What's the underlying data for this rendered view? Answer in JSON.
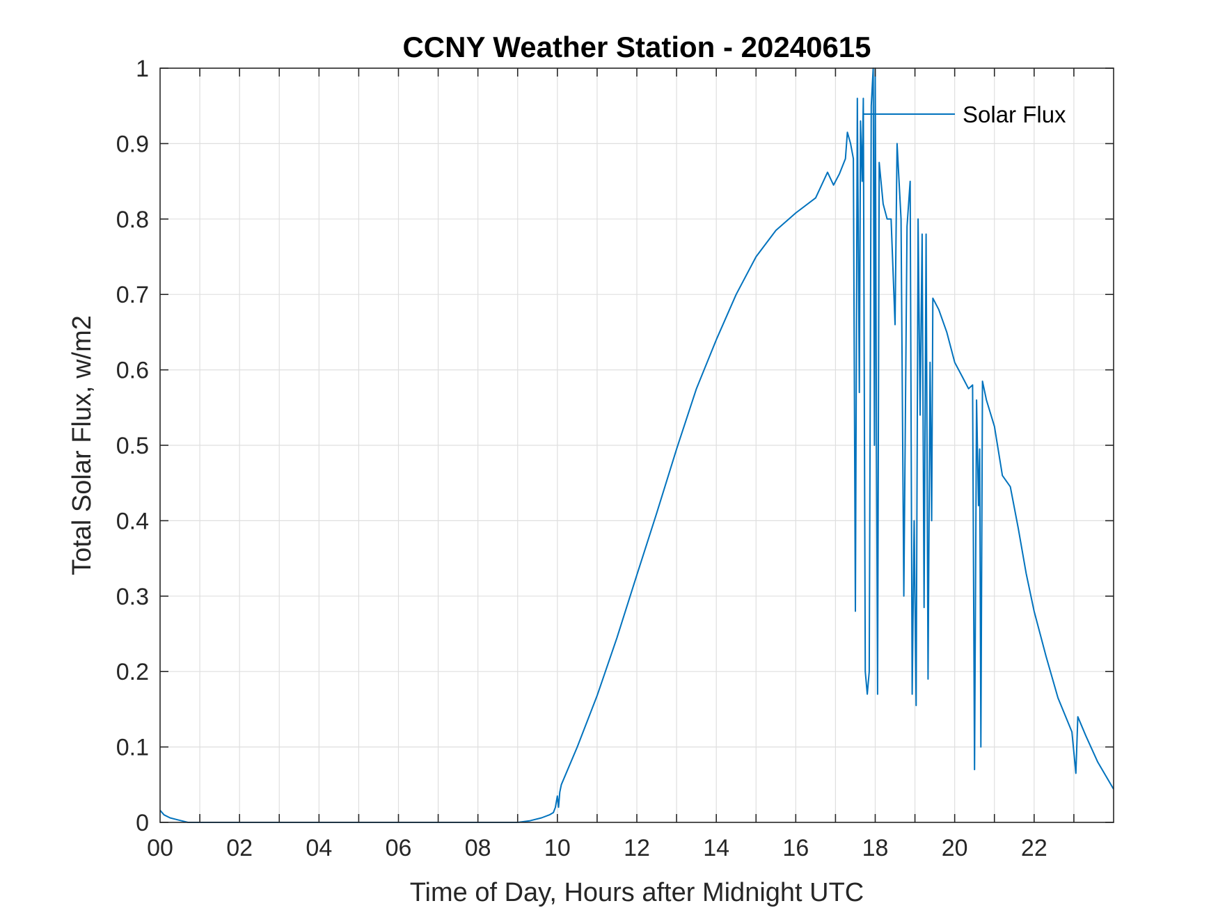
{
  "chart_data": {
    "type": "line",
    "title": "CCNY Weather Station - 20240615",
    "xlabel": "Time of Day, Hours after Midnight UTC",
    "ylabel": "Total Solar Flux, w/m2",
    "xlim": [
      0,
      24
    ],
    "ylim": [
      0,
      1
    ],
    "x_ticks": [
      0,
      2,
      4,
      6,
      8,
      10,
      12,
      14,
      16,
      18,
      20,
      22
    ],
    "x_tick_labels": [
      "00",
      "02",
      "04",
      "06",
      "08",
      "10",
      "12",
      "14",
      "16",
      "18",
      "20",
      "22"
    ],
    "y_ticks": [
      0,
      0.1,
      0.2,
      0.3,
      0.4,
      0.5,
      0.6,
      0.7,
      0.8,
      0.9,
      1
    ],
    "y_tick_labels": [
      "0",
      "0.1",
      "0.2",
      "0.3",
      "0.4",
      "0.5",
      "0.6",
      "0.7",
      "0.8",
      "0.9",
      "1"
    ],
    "grid": true,
    "legend": {
      "placement": "top-right",
      "entries": [
        "Solar Flux"
      ]
    },
    "series": [
      {
        "name": "Solar Flux",
        "color": "#0072BD",
        "points": [
          [
            0,
            0.016
          ],
          [
            0.1,
            0.01
          ],
          [
            0.25,
            0.006
          ],
          [
            0.4,
            0.004
          ],
          [
            0.55,
            0.002
          ],
          [
            0.7,
            0.0
          ],
          [
            1,
            0.0
          ],
          [
            2,
            0.0
          ],
          [
            3,
            0.0
          ],
          [
            4,
            0.0
          ],
          [
            5,
            0.0
          ],
          [
            6,
            0.0
          ],
          [
            7,
            0.0
          ],
          [
            8,
            0.0
          ],
          [
            9,
            0.0
          ],
          [
            9.3,
            0.002
          ],
          [
            9.6,
            0.006
          ],
          [
            9.8,
            0.01
          ],
          [
            9.9,
            0.013
          ],
          [
            9.95,
            0.02
          ],
          [
            10.0,
            0.035
          ],
          [
            10.03,
            0.02
          ],
          [
            10.06,
            0.04
          ],
          [
            10.1,
            0.05
          ],
          [
            10.5,
            0.1
          ],
          [
            11.0,
            0.168
          ],
          [
            11.5,
            0.245
          ],
          [
            12.0,
            0.328
          ],
          [
            12.5,
            0.41
          ],
          [
            13.0,
            0.495
          ],
          [
            13.5,
            0.575
          ],
          [
            14.0,
            0.64
          ],
          [
            14.5,
            0.7
          ],
          [
            15.0,
            0.75
          ],
          [
            15.5,
            0.785
          ],
          [
            16.0,
            0.808
          ],
          [
            16.5,
            0.828
          ],
          [
            16.8,
            0.862
          ],
          [
            16.95,
            0.845
          ],
          [
            17.1,
            0.86
          ],
          [
            17.25,
            0.88
          ],
          [
            17.3,
            0.915
          ],
          [
            17.38,
            0.9
          ],
          [
            17.45,
            0.88
          ],
          [
            17.5,
            0.28
          ],
          [
            17.55,
            0.96
          ],
          [
            17.6,
            0.57
          ],
          [
            17.63,
            0.93
          ],
          [
            17.67,
            0.85
          ],
          [
            17.7,
            0.96
          ],
          [
            17.75,
            0.2
          ],
          [
            17.8,
            0.17
          ],
          [
            17.85,
            0.2
          ],
          [
            17.9,
            0.95
          ],
          [
            17.95,
            1.0
          ],
          [
            17.98,
            0.5
          ],
          [
            18.0,
            1.0
          ],
          [
            18.03,
            0.53
          ],
          [
            18.06,
            0.17
          ],
          [
            18.1,
            0.875
          ],
          [
            18.2,
            0.82
          ],
          [
            18.3,
            0.8
          ],
          [
            18.4,
            0.8
          ],
          [
            18.5,
            0.66
          ],
          [
            18.55,
            0.9
          ],
          [
            18.65,
            0.8
          ],
          [
            18.72,
            0.3
          ],
          [
            18.8,
            0.79
          ],
          [
            18.88,
            0.85
          ],
          [
            18.93,
            0.17
          ],
          [
            18.98,
            0.4
          ],
          [
            19.03,
            0.155
          ],
          [
            19.08,
            0.8
          ],
          [
            19.13,
            0.54
          ],
          [
            19.18,
            0.78
          ],
          [
            19.23,
            0.285
          ],
          [
            19.28,
            0.78
          ],
          [
            19.33,
            0.19
          ],
          [
            19.38,
            0.61
          ],
          [
            19.42,
            0.4
          ],
          [
            19.45,
            0.695
          ],
          [
            19.6,
            0.68
          ],
          [
            19.8,
            0.65
          ],
          [
            20.0,
            0.61
          ],
          [
            20.2,
            0.59
          ],
          [
            20.35,
            0.575
          ],
          [
            20.45,
            0.58
          ],
          [
            20.5,
            0.07
          ],
          [
            20.55,
            0.56
          ],
          [
            20.6,
            0.42
          ],
          [
            20.63,
            0.495
          ],
          [
            20.66,
            0.1
          ],
          [
            20.7,
            0.585
          ],
          [
            20.8,
            0.56
          ],
          [
            21.0,
            0.525
          ],
          [
            21.2,
            0.46
          ],
          [
            21.4,
            0.445
          ],
          [
            21.6,
            0.39
          ],
          [
            21.8,
            0.33
          ],
          [
            22.0,
            0.28
          ],
          [
            22.3,
            0.22
          ],
          [
            22.6,
            0.165
          ],
          [
            22.95,
            0.12
          ],
          [
            23.05,
            0.065
          ],
          [
            23.1,
            0.14
          ],
          [
            23.3,
            0.115
          ],
          [
            23.6,
            0.08
          ],
          [
            24.0,
            0.044
          ]
        ]
      }
    ]
  }
}
